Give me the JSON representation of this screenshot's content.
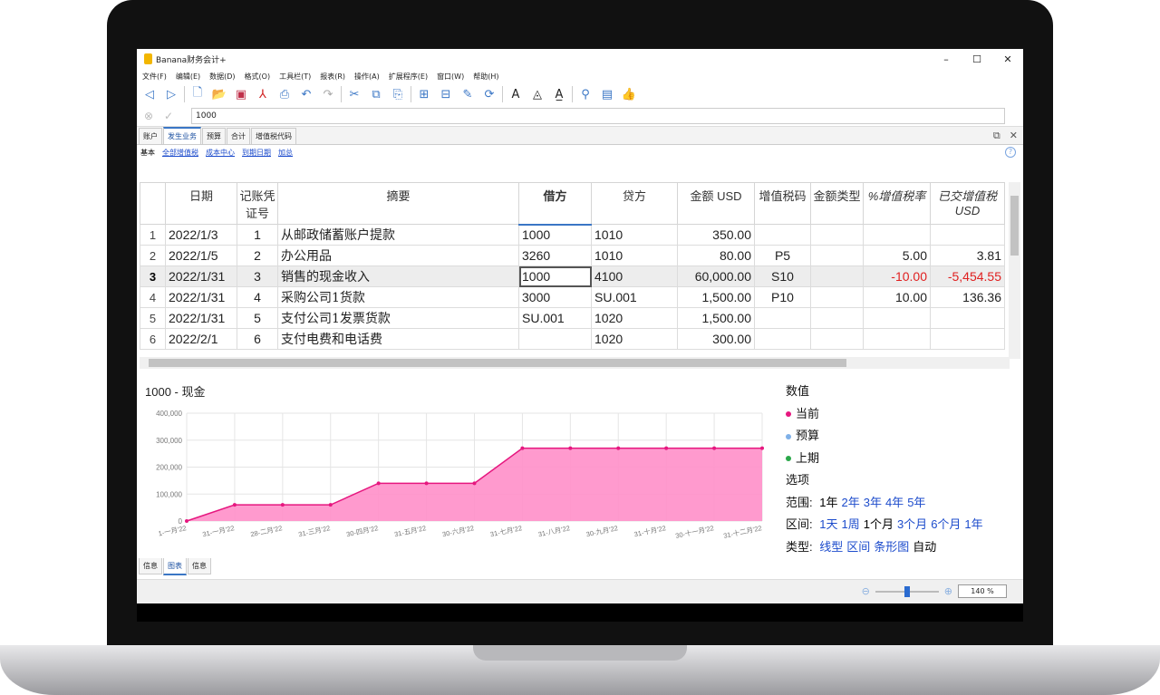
{
  "app": {
    "title": "Banana财务会计+"
  },
  "menu": [
    "文件(F)",
    "编辑(E)",
    "数据(D)",
    "格式(O)",
    "工具栏(T)",
    "报表(R)",
    "操作(A)",
    "扩展程序(E)",
    "窗口(W)",
    "帮助(H)"
  ],
  "formula": {
    "value": "1000"
  },
  "tabs": [
    "账户",
    "发生业务",
    "预算",
    "合计",
    "增值税代码"
  ],
  "views": [
    "基本",
    "全部增值税",
    "成本中心",
    "到期日期",
    "加总"
  ],
  "table": {
    "headers": {
      "date": "日期",
      "doc": "记账凭证号",
      "desc": "摘要",
      "debit": "借方",
      "credit": "贷方",
      "amount": "金额 USD",
      "vatcode": "增值税码",
      "amttype": "金额类型",
      "vatrate": "%增值税率",
      "vatposted": "已交增值税 USD"
    },
    "rows": [
      {
        "n": "1",
        "date": "2022/1/3",
        "doc": "1",
        "desc": "从邮政储蓄账户提款",
        "debit": "1000",
        "credit": "1010",
        "amount": "350.00",
        "vatcode": "",
        "amttype": "",
        "vatrate": "",
        "vatposted": ""
      },
      {
        "n": "2",
        "date": "2022/1/5",
        "doc": "2",
        "desc": "办公用品",
        "debit": "3260",
        "credit": "1010",
        "amount": "80.00",
        "vatcode": "P5",
        "amttype": "",
        "vatrate": "5.00",
        "vatposted": "3.81"
      },
      {
        "n": "3",
        "date": "2022/1/31",
        "doc": "3",
        "desc": "销售的现金收入",
        "debit": "1000",
        "credit": "4100",
        "amount": "60,000.00",
        "vatcode": "S10",
        "amttype": "",
        "vatrate": "-10.00",
        "vatposted": "-5,454.55"
      },
      {
        "n": "4",
        "date": "2022/1/31",
        "doc": "4",
        "desc": "采购公司1货款",
        "debit": "3000",
        "credit": "SU.001",
        "amount": "1,500.00",
        "vatcode": "P10",
        "amttype": "",
        "vatrate": "10.00",
        "vatposted": "136.36"
      },
      {
        "n": "5",
        "date": "2022/1/31",
        "doc": "5",
        "desc": "支付公司1发票货款",
        "debit": "SU.001",
        "credit": "1020",
        "amount": "1,500.00",
        "vatcode": "",
        "amttype": "",
        "vatrate": "",
        "vatposted": ""
      },
      {
        "n": "6",
        "date": "2022/2/1",
        "doc": "6",
        "desc": "支付电费和电话费",
        "debit": "",
        "credit": "1020",
        "amount": "300.00",
        "vatcode": "",
        "amttype": "",
        "vatrate": "",
        "vatposted": ""
      }
    ]
  },
  "chart_panel": {
    "title": "1000 - 现金"
  },
  "chart_data": {
    "type": "area",
    "x": [
      "1-一月'22",
      "31-一月'22",
      "28-二月'22",
      "31-三月'22",
      "30-四月'22",
      "31-五月'22",
      "30-六月'22",
      "31-七月'22",
      "31-八月'22",
      "30-九月'22",
      "31-十月'22",
      "30-十一月'22",
      "31-十二月'22"
    ],
    "series": [
      {
        "name": "当前",
        "values": [
          0,
          60000,
          60000,
          60000,
          140000,
          140000,
          140000,
          270000,
          270000,
          270000,
          270000,
          270000,
          270000
        ]
      }
    ],
    "yticks": [
      "400,000",
      "300,000",
      "200,000",
      "100,000",
      "0"
    ],
    "ylim": [
      0,
      400000
    ],
    "colors": {
      "line": "#e6177f",
      "fill": "#ff8fc9"
    }
  },
  "legend": {
    "title": "数值",
    "items": [
      {
        "label": "当前",
        "color": "#e6177f"
      },
      {
        "label": "预算",
        "color": "#7fb0e8"
      },
      {
        "label": "上期",
        "color": "#2ba84a"
      }
    ],
    "options_title": "选项",
    "range_label": "范围:",
    "range": [
      "1年",
      "2年",
      "3年",
      "4年",
      "5年"
    ],
    "interval_label": "区间:",
    "interval": [
      "1天",
      "1周",
      "1个月",
      "3个月",
      "6个月",
      "1年"
    ],
    "type_label": "类型:",
    "type": [
      "线型",
      "区间",
      "条形图",
      "自动"
    ]
  },
  "bottom_tabs": [
    "信息",
    "图表",
    "信息"
  ],
  "zoom": {
    "value": "140 %"
  }
}
